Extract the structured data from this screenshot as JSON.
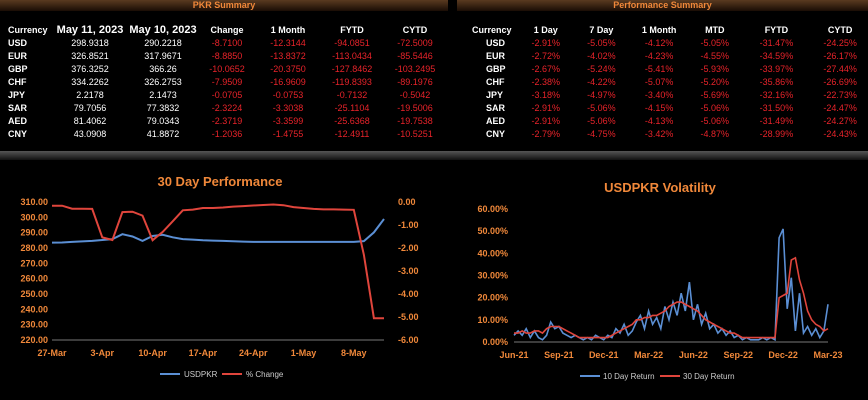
{
  "pkr_summary": {
    "title": "PKR Summary",
    "headers": [
      "Currency",
      "May 11, 2023",
      "May 10, 2023",
      "Change",
      "1 Month",
      "FYTD",
      "CYTD"
    ],
    "rows": [
      [
        "USD",
        "298.9318",
        "290.2218",
        "-8.7100",
        "-12.3144",
        "-94.0851",
        "-72.5009"
      ],
      [
        "EUR",
        "326.8521",
        "317.9671",
        "-8.8850",
        "-13.8372",
        "-113.0434",
        "-85.5446"
      ],
      [
        "GBP",
        "376.3252",
        "366.26",
        "-10.0652",
        "-20.3750",
        "-127.8462",
        "-103.2495"
      ],
      [
        "CHF",
        "334.2262",
        "326.2753",
        "-7.9509",
        "-16.9609",
        "-119.8393",
        "-89.1976"
      ],
      [
        "JPY",
        "2.2178",
        "2.1473",
        "-0.0705",
        "-0.0753",
        "-0.7132",
        "-0.5042"
      ],
      [
        "SAR",
        "79.7056",
        "77.3832",
        "-2.3224",
        "-3.3038",
        "-25.1104",
        "-19.5006"
      ],
      [
        "AED",
        "81.4062",
        "79.0343",
        "-2.3719",
        "-3.3599",
        "-25.6368",
        "-19.7538"
      ],
      [
        "CNY",
        "43.0908",
        "41.8872",
        "-1.2036",
        "-1.4755",
        "-12.4911",
        "-10.5251"
      ]
    ]
  },
  "performance_summary": {
    "title": "Performance Summary",
    "headers": [
      "Currency",
      "1 Day",
      "7 Day",
      "1 Month",
      "MTD",
      "FYTD",
      "CYTD"
    ],
    "rows": [
      [
        "USD",
        "-2.91%",
        "-5.05%",
        "-4.12%",
        "-5.05%",
        "-31.47%",
        "-24.25%"
      ],
      [
        "EUR",
        "-2.72%",
        "-4.02%",
        "-4.23%",
        "-4.55%",
        "-34.59%",
        "-26.17%"
      ],
      [
        "GBP",
        "-2.67%",
        "-5.24%",
        "-5.41%",
        "-5.93%",
        "-33.97%",
        "-27.44%"
      ],
      [
        "CHF",
        "-2.38%",
        "-4.22%",
        "-5.07%",
        "-5.20%",
        "-35.86%",
        "-26.69%"
      ],
      [
        "JPY",
        "-3.18%",
        "-4.97%",
        "-3.40%",
        "-5.69%",
        "-32.16%",
        "-22.73%"
      ],
      [
        "SAR",
        "-2.91%",
        "-5.06%",
        "-4.15%",
        "-5.06%",
        "-31.50%",
        "-24.47%"
      ],
      [
        "AED",
        "-2.91%",
        "-5.06%",
        "-4.13%",
        "-5.06%",
        "-31.49%",
        "-24.27%"
      ],
      [
        "CNY",
        "-2.79%",
        "-4.75%",
        "-3.42%",
        "-4.87%",
        "-28.99%",
        "-24.43%"
      ]
    ]
  },
  "colors": {
    "accent": "#f0883a",
    "negative": "#e8232a",
    "blue_series": "#5b8fd4",
    "red_series": "#e0453c"
  },
  "chart_data": [
    {
      "type": "line",
      "title": "30 Day Performance",
      "x_ticks": [
        "27-Mar",
        "3-Apr",
        "10-Apr",
        "17-Apr",
        "24-Apr",
        "1-May",
        "8-May"
      ],
      "x": [
        "27-Mar",
        "28-Mar",
        "29-Mar",
        "30-Mar",
        "31-Mar",
        "3-Apr",
        "4-Apr",
        "5-Apr",
        "6-Apr",
        "7-Apr",
        "10-Apr",
        "11-Apr",
        "12-Apr",
        "13-Apr",
        "14-Apr",
        "17-Apr",
        "18-Apr",
        "19-Apr",
        "20-Apr",
        "21-Apr",
        "24-Apr",
        "25-Apr",
        "26-Apr",
        "27-Apr",
        "28-Apr",
        "1-May",
        "2-May",
        "3-May",
        "4-May",
        "5-May",
        "8-May",
        "9-May",
        "10-May",
        "11-May"
      ],
      "ylim_left": [
        220,
        310
      ],
      "yticks_left": [
        "220.00",
        "230.00",
        "240.00",
        "250.00",
        "260.00",
        "270.00",
        "280.00",
        "290.00",
        "300.00",
        "310.00"
      ],
      "ylim_right": [
        -6,
        0
      ],
      "yticks_right": [
        "-6.00",
        "-5.00",
        "-4.00",
        "-3.00",
        "-2.00",
        "-1.00",
        "0.00"
      ],
      "series": [
        {
          "name": "USDPKR",
          "axis": "left",
          "values": [
            283.5,
            283.6,
            284.0,
            284.3,
            284.6,
            285.2,
            285.8,
            289.0,
            287.5,
            284.6,
            287.8,
            288.6,
            287.0,
            285.8,
            285.5,
            285.0,
            284.8,
            284.6,
            284.4,
            284.2,
            284.0,
            284.0,
            284.0,
            284.0,
            284.0,
            284.0,
            284.0,
            284.0,
            284.0,
            284.0,
            284.0,
            284.5,
            290.2,
            298.9
          ]
        },
        {
          "name": "% Change",
          "axis": "right",
          "values": [
            -0.16,
            -0.16,
            -0.29,
            -0.29,
            -0.3,
            -1.54,
            -1.65,
            -0.44,
            -0.42,
            -0.59,
            -1.66,
            -1.3,
            -0.84,
            -0.36,
            -0.33,
            -0.26,
            -0.26,
            -0.24,
            -0.2,
            -0.18,
            -0.15,
            -0.13,
            -0.11,
            -0.14,
            -0.22,
            -0.26,
            -0.3,
            -0.32,
            -0.32,
            -0.33,
            -0.34,
            -2.3,
            -5.05,
            -5.05
          ]
        }
      ]
    },
    {
      "type": "line",
      "title": "USDPKR Volatility",
      "x_ticks": [
        "Jun-21",
        "Sep-21",
        "Dec-21",
        "Mar-22",
        "Jun-22",
        "Sep-22",
        "Dec-22",
        "Mar-23"
      ],
      "ylim": [
        0,
        0.6
      ],
      "yticks": [
        "0.00%",
        "10.00%",
        "20.00%",
        "30.00%",
        "40.00%",
        "50.00%",
        "60.00%"
      ],
      "series": [
        {
          "name": "10 Day Return",
          "values": [
            0.03,
            0.05,
            0.03,
            0.06,
            0.02,
            0.05,
            0.02,
            0.01,
            0.03,
            0.09,
            0.06,
            0.07,
            0.04,
            0.03,
            0.02,
            0.03,
            0.02,
            0.01,
            0.02,
            0.01,
            0.03,
            0.02,
            0.01,
            0.03,
            0.02,
            0.06,
            0.04,
            0.08,
            0.03,
            0.05,
            0.09,
            0.12,
            0.06,
            0.14,
            0.08,
            0.11,
            0.06,
            0.16,
            0.1,
            0.18,
            0.12,
            0.22,
            0.14,
            0.27,
            0.1,
            0.17,
            0.08,
            0.13,
            0.06,
            0.08,
            0.04,
            0.06,
            0.03,
            0.05,
            0.02,
            0.03,
            0.01,
            0.02,
            0.01,
            0.01,
            0.01,
            0.02,
            0.01,
            0.02,
            0.01,
            0.47,
            0.51,
            0.15,
            0.29,
            0.05,
            0.22,
            0.04,
            0.07,
            0.03,
            0.06,
            0.02,
            0.05,
            0.17
          ]
        },
        {
          "name": "30 Day Return",
          "values": [
            0.04,
            0.04,
            0.05,
            0.04,
            0.04,
            0.05,
            0.05,
            0.04,
            0.06,
            0.07,
            0.07,
            0.07,
            0.06,
            0.05,
            0.04,
            0.03,
            0.02,
            0.02,
            0.02,
            0.02,
            0.02,
            0.02,
            0.02,
            0.02,
            0.03,
            0.04,
            0.05,
            0.06,
            0.07,
            0.08,
            0.1,
            0.1,
            0.11,
            0.11,
            0.12,
            0.12,
            0.13,
            0.14,
            0.16,
            0.17,
            0.18,
            0.18,
            0.17,
            0.16,
            0.15,
            0.14,
            0.12,
            0.1,
            0.09,
            0.08,
            0.07,
            0.06,
            0.05,
            0.04,
            0.04,
            0.03,
            0.02,
            0.02,
            0.02,
            0.02,
            0.02,
            0.02,
            0.02,
            0.02,
            0.02,
            0.2,
            0.21,
            0.22,
            0.37,
            0.38,
            0.28,
            0.22,
            0.14,
            0.1,
            0.08,
            0.07,
            0.05,
            0.06
          ]
        }
      ]
    }
  ]
}
